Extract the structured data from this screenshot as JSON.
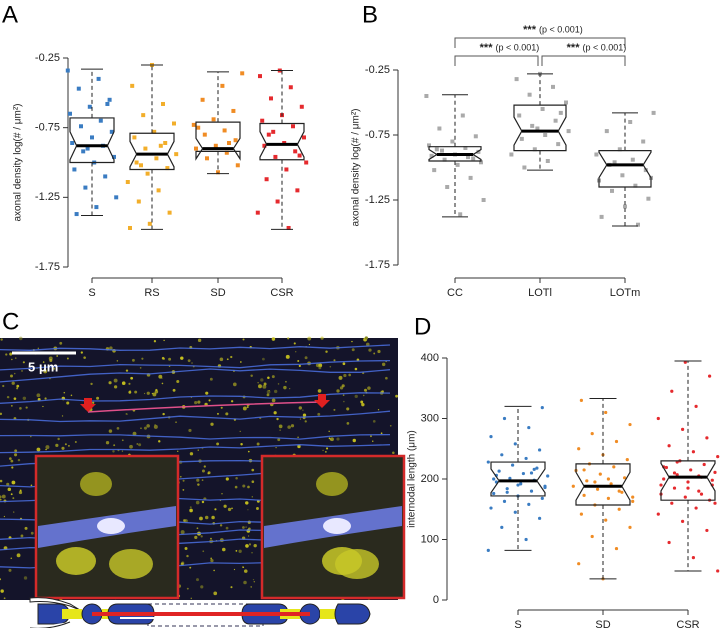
{
  "panel_labels": [
    "A",
    "B",
    "C",
    "D"
  ],
  "scale_bar": "5 μm",
  "chart_data": [
    {
      "type": "box",
      "ylabel": "axonal density  log(# / μm²)",
      "categories": [
        "S",
        "RS",
        "SD",
        "CSR"
      ],
      "colors": [
        "#3a7cc2",
        "#f2ae2a",
        "#f08c24",
        "#e52a2e"
      ],
      "ylim": [
        -1.75,
        -0.25
      ],
      "yticks": [
        -1.75,
        -1.25,
        -0.75,
        -0.25
      ],
      "boxes": [
        {
          "whislo": -1.38,
          "q1": -1.0,
          "med": -0.88,
          "q3": -0.68,
          "whishi": -0.33
        },
        {
          "whislo": -1.48,
          "q1": -1.05,
          "med": -0.94,
          "q3": -0.79,
          "whishi": -0.3
        },
        {
          "whislo": -1.08,
          "q1": -0.92,
          "med": -0.9,
          "q3": -0.71,
          "whishi": -0.35
        },
        {
          "whislo": -1.48,
          "q1": -0.98,
          "med": -0.87,
          "q3": -0.72,
          "whishi": -0.34
        }
      ],
      "points": [
        [
          -0.34,
          -0.4,
          -0.47,
          -0.55,
          -0.6,
          -0.65,
          -0.7,
          -0.74,
          -0.78,
          -0.82,
          -0.86,
          -0.88,
          -0.92,
          -0.96,
          -1.0,
          -1.05,
          -1.1,
          -1.18,
          -1.25,
          -1.32,
          -1.37,
          -0.58,
          -0.9
        ],
        [
          -0.3,
          -0.45,
          -0.58,
          -0.66,
          -0.72,
          -0.78,
          -0.82,
          -0.86,
          -0.9,
          -0.94,
          -0.97,
          -1.0,
          -1.04,
          -1.08,
          -1.14,
          -1.2,
          -1.28,
          -1.36,
          -1.44,
          -1.47,
          -0.88,
          -1.02
        ],
        [
          -0.36,
          -0.45,
          -0.55,
          -0.63,
          -0.69,
          -0.73,
          -0.77,
          -0.8,
          -0.84,
          -0.88,
          -0.9,
          -0.93,
          -0.97,
          -1.02,
          -1.07,
          -0.75,
          -0.86
        ],
        [
          -0.34,
          -0.38,
          -0.46,
          -0.54,
          -0.6,
          -0.66,
          -0.7,
          -0.74,
          -0.78,
          -0.82,
          -0.86,
          -0.88,
          -0.92,
          -0.96,
          -1.0,
          -1.05,
          -1.12,
          -1.2,
          -1.28,
          -1.36,
          -1.47,
          -0.8,
          -0.95
        ]
      ]
    },
    {
      "type": "box",
      "ylabel": "axonal density  log(# / μm²)",
      "categories": [
        "CC",
        "LOTl",
        "LOTm"
      ],
      "colors": [
        "#aaaaaa",
        "#aaaaaa",
        "#aaaaaa"
      ],
      "ylim": [
        -1.75,
        -0.25
      ],
      "yticks": [
        -1.75,
        -1.25,
        -0.75,
        -0.25
      ],
      "boxes": [
        {
          "whislo": -1.38,
          "q1": -0.95,
          "med": -0.9,
          "q3": -0.84,
          "whishi": -0.44
        },
        {
          "whislo": -1.02,
          "q1": -0.87,
          "med": -0.72,
          "q3": -0.52,
          "whishi": -0.28
        },
        {
          "whislo": -1.45,
          "q1": -1.15,
          "med": -0.98,
          "q3": -0.87,
          "whishi": -0.58
        }
      ],
      "points": [
        [
          -0.45,
          -0.6,
          -0.7,
          -0.76,
          -0.8,
          -0.83,
          -0.85,
          -0.87,
          -0.88,
          -0.9,
          -0.91,
          -0.92,
          -0.94,
          -0.96,
          -0.98,
          -1.02,
          -1.08,
          -1.15,
          -1.25,
          -1.36,
          -0.86,
          -0.93
        ],
        [
          -0.28,
          -0.32,
          -0.38,
          -0.44,
          -0.5,
          -0.55,
          -0.6,
          -0.64,
          -0.68,
          -0.72,
          -0.75,
          -0.78,
          -0.82,
          -0.86,
          -0.9,
          -0.95,
          -1.0,
          -0.58,
          -0.7
        ],
        [
          -0.58,
          -0.65,
          -0.72,
          -0.8,
          -0.86,
          -0.9,
          -0.94,
          -0.98,
          -1.02,
          -1.06,
          -1.1,
          -1.14,
          -1.18,
          -1.24,
          -1.3,
          -1.38,
          -1.44,
          -0.96,
          -1.08
        ]
      ],
      "annotations": [
        {
          "text": "***",
          "p": "(p < 0.001)"
        },
        {
          "text": "***",
          "p": "(p < 0.001)"
        },
        {
          "text": "***",
          "p": "(p < 0.001)"
        }
      ]
    },
    {
      "type": "box",
      "ylabel": "internodal length (μm)",
      "categories": [
        "S",
        "SD",
        "CSR"
      ],
      "colors": [
        "#3a7cc2",
        "#f08c24",
        "#e52a2e"
      ],
      "ylim": [
        0,
        400
      ],
      "yticks": [
        0,
        100,
        200,
        300,
        400
      ],
      "boxes": [
        {
          "whislo": 82,
          "q1": 172,
          "med": 197,
          "q3": 228,
          "whishi": 320
        },
        {
          "whislo": 35,
          "q1": 157,
          "med": 188,
          "q3": 225,
          "whishi": 333
        },
        {
          "whislo": 48,
          "q1": 165,
          "med": 203,
          "q3": 230,
          "whishi": 395
        }
      ],
      "points": [
        [
          82,
          100,
          120,
          135,
          145,
          152,
          158,
          163,
          168,
          172,
          176,
          180,
          184,
          188,
          192,
          195,
          198,
          201,
          205,
          209,
          213,
          218,
          223,
          228,
          234,
          240,
          248,
          258,
          270,
          285,
          300,
          318,
          190,
          200,
          210,
          178,
          186,
          196,
          206,
          216
        ],
        [
          35,
          60,
          85,
          105,
          120,
          132,
          142,
          150,
          157,
          163,
          168,
          173,
          178,
          183,
          188,
          192,
          197,
          202,
          208,
          214,
          220,
          225,
          232,
          240,
          250,
          262,
          275,
          290,
          310,
          330,
          180,
          195,
          170,
          200,
          215
        ],
        [
          48,
          70,
          95,
          115,
          130,
          142,
          152,
          160,
          165,
          170,
          175,
          180,
          185,
          190,
          195,
          200,
          203,
          207,
          211,
          215,
          219,
          224,
          230,
          237,
          245,
          255,
          268,
          282,
          300,
          320,
          345,
          370,
          393,
          190,
          205,
          210,
          198,
          185,
          220,
          175,
          228,
          160
        ]
      ]
    }
  ]
}
